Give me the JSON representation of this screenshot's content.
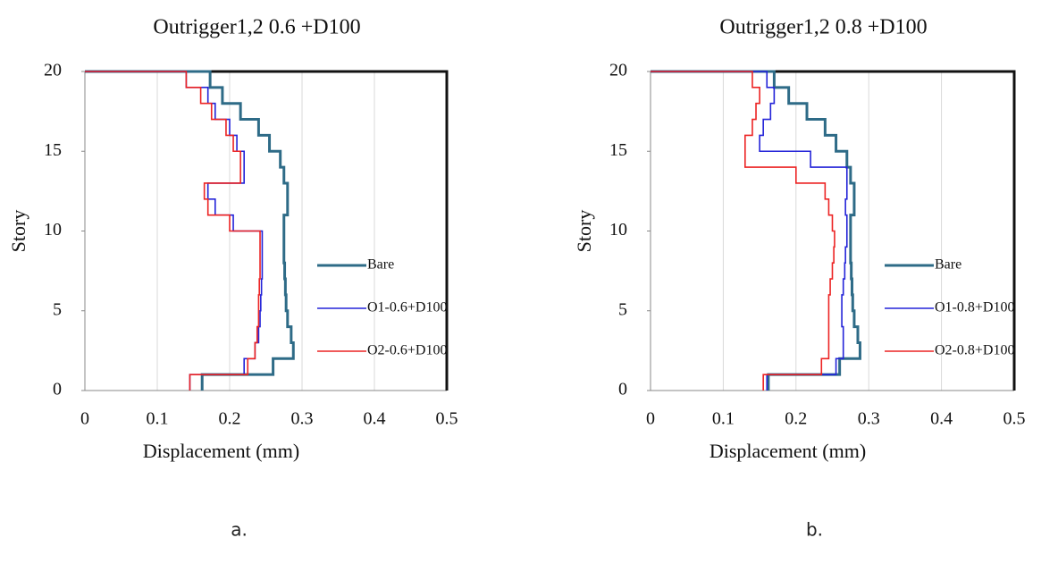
{
  "chart_data": [
    {
      "type": "line",
      "title": "Outrigger1,2 0.6 +D100",
      "xlabel": "Displacement (mm)",
      "ylabel": "Story",
      "caption": "a.",
      "xlim": [
        0,
        0.5
      ],
      "xticks": [
        0,
        0.1,
        0.2,
        0.3,
        0.4,
        0.5
      ],
      "ylim": [
        0,
        20
      ],
      "yticks": [
        0,
        5,
        10,
        15,
        20
      ],
      "grid": true,
      "legend": "right",
      "y": [
        0,
        1,
        1,
        2,
        2,
        3,
        3,
        4,
        4,
        5,
        5,
        6,
        6,
        7,
        7,
        8,
        8,
        9,
        9,
        10,
        10,
        11,
        11,
        12,
        12,
        13,
        13,
        14,
        14,
        15,
        15,
        16,
        16,
        17,
        17,
        18,
        18,
        19,
        19,
        20,
        20
      ],
      "series": [
        {
          "name": "Bare",
          "color": "#2e6b87",
          "x": [
            0.162,
            0.162,
            0.26,
            0.26,
            0.288,
            0.288,
            0.285,
            0.285,
            0.28,
            0.28,
            0.278,
            0.278,
            0.277,
            0.277,
            0.276,
            0.276,
            0.275,
            0.275,
            0.275,
            0.275,
            0.275,
            0.275,
            0.28,
            0.28,
            0.28,
            0.28,
            0.275,
            0.275,
            0.27,
            0.27,
            0.255,
            0.255,
            0.24,
            0.24,
            0.215,
            0.215,
            0.19,
            0.19,
            0.173,
            0.173,
            0
          ]
        },
        {
          "name": "O1-0.6+D100",
          "color": "#2323d8",
          "x": [
            0.145,
            0.145,
            0.22,
            0.22,
            0.235,
            0.235,
            0.24,
            0.24,
            0.242,
            0.242,
            0.243,
            0.243,
            0.244,
            0.244,
            0.245,
            0.245,
            0.245,
            0.245,
            0.245,
            0.245,
            0.205,
            0.205,
            0.18,
            0.18,
            0.17,
            0.17,
            0.22,
            0.22,
            0.22,
            0.22,
            0.21,
            0.21,
            0.2,
            0.2,
            0.18,
            0.18,
            0.17,
            0.17,
            0.14,
            0.14,
            0
          ]
        },
        {
          "name": "O2-0.6+D100",
          "color": "#ec2323",
          "x": [
            0.145,
            0.145,
            0.225,
            0.225,
            0.235,
            0.235,
            0.238,
            0.238,
            0.24,
            0.24,
            0.24,
            0.24,
            0.241,
            0.241,
            0.242,
            0.242,
            0.242,
            0.242,
            0.242,
            0.242,
            0.2,
            0.2,
            0.17,
            0.17,
            0.165,
            0.165,
            0.215,
            0.215,
            0.215,
            0.215,
            0.205,
            0.205,
            0.195,
            0.195,
            0.175,
            0.175,
            0.16,
            0.16,
            0.14,
            0.14,
            0
          ]
        }
      ]
    },
    {
      "type": "line",
      "title": "Outrigger1,2 0.8 +D100",
      "xlabel": "Displacement (mm)",
      "ylabel": "Story",
      "caption": "b.",
      "xlim": [
        0,
        0.5
      ],
      "xticks": [
        0,
        0.1,
        0.2,
        0.3,
        0.4,
        0.5
      ],
      "ylim": [
        0,
        20
      ],
      "yticks": [
        0,
        5,
        10,
        15,
        20
      ],
      "grid": true,
      "legend": "right",
      "y": [
        0,
        1,
        1,
        2,
        2,
        3,
        3,
        4,
        4,
        5,
        5,
        6,
        6,
        7,
        7,
        8,
        8,
        9,
        9,
        10,
        10,
        11,
        11,
        12,
        12,
        13,
        13,
        14,
        14,
        15,
        15,
        16,
        16,
        17,
        17,
        18,
        18,
        19,
        19,
        20,
        20
      ],
      "series": [
        {
          "name": "Bare",
          "color": "#2e6b87",
          "x": [
            0.162,
            0.162,
            0.26,
            0.26,
            0.288,
            0.288,
            0.285,
            0.285,
            0.28,
            0.28,
            0.278,
            0.278,
            0.277,
            0.277,
            0.276,
            0.276,
            0.275,
            0.275,
            0.275,
            0.275,
            0.275,
            0.275,
            0.28,
            0.28,
            0.28,
            0.28,
            0.275,
            0.275,
            0.27,
            0.27,
            0.255,
            0.255,
            0.24,
            0.24,
            0.215,
            0.215,
            0.19,
            0.19,
            0.17,
            0.17,
            0
          ]
        },
        {
          "name": "O1-0.8+D100",
          "color": "#2323d8",
          "x": [
            0.16,
            0.16,
            0.255,
            0.255,
            0.265,
            0.265,
            0.265,
            0.265,
            0.263,
            0.263,
            0.263,
            0.263,
            0.265,
            0.265,
            0.267,
            0.267,
            0.268,
            0.268,
            0.27,
            0.27,
            0.27,
            0.27,
            0.268,
            0.268,
            0.27,
            0.27,
            0.27,
            0.27,
            0.22,
            0.22,
            0.15,
            0.15,
            0.155,
            0.155,
            0.165,
            0.165,
            0.17,
            0.17,
            0.16,
            0.16,
            0
          ]
        },
        {
          "name": "O2-0.8+D100",
          "color": "#ec2323",
          "x": [
            0.155,
            0.155,
            0.235,
            0.235,
            0.245,
            0.245,
            0.245,
            0.245,
            0.245,
            0.245,
            0.245,
            0.245,
            0.247,
            0.247,
            0.25,
            0.25,
            0.252,
            0.252,
            0.253,
            0.253,
            0.25,
            0.25,
            0.245,
            0.245,
            0.24,
            0.24,
            0.2,
            0.2,
            0.13,
            0.13,
            0.13,
            0.13,
            0.14,
            0.14,
            0.145,
            0.145,
            0.15,
            0.15,
            0.14,
            0.14,
            0
          ]
        }
      ]
    }
  ]
}
